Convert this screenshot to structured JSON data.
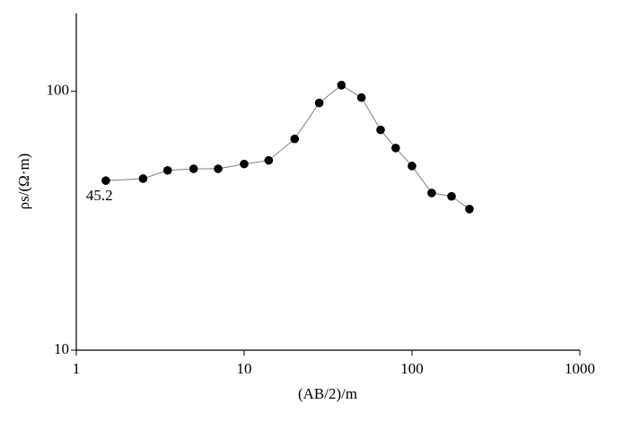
{
  "chart_data": {
    "type": "line",
    "x_label": "(AB/2)/m",
    "y_label": "ρs/(Ω·m)",
    "log_x": true,
    "log_y": true,
    "grid": false,
    "xlim": [
      1,
      1000
    ],
    "xticks": [
      1,
      10,
      100,
      1000
    ],
    "ylim": [
      10,
      200
    ],
    "yticks": [
      10,
      100
    ],
    "line_color": "#808080",
    "marker_color": "#000000",
    "series": [
      {
        "x": [
          1.5,
          2.5,
          3.5,
          5,
          7,
          10,
          14,
          20,
          28,
          38,
          50,
          65,
          80,
          100,
          131,
          172,
          220
        ],
        "values": [
          45.2,
          46.0,
          49.5,
          50.2,
          50.2,
          52.4,
          54.1,
          65.5,
          90.2,
          105.7,
          94.6,
          71,
          60.4,
          51.5,
          40.5,
          39.3,
          35.1
        ]
      }
    ]
  }
}
